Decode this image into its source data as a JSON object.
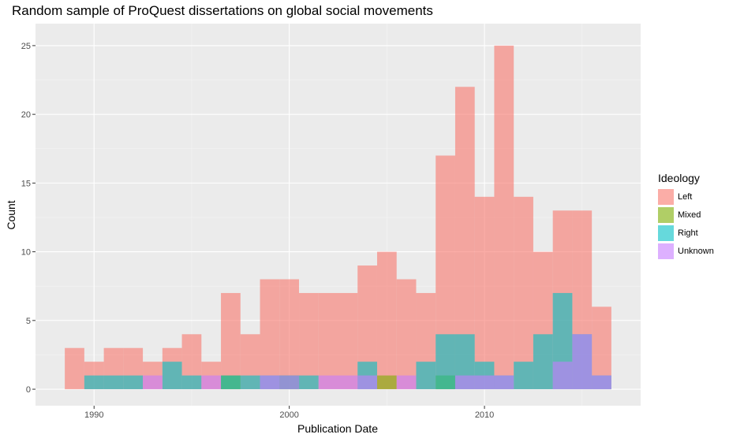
{
  "chart_data": {
    "type": "histogram",
    "title": "Random sample of ProQuest dissertations on global social movements",
    "xlabel": "Publication Date",
    "ylabel": "Count",
    "xlim": [
      1987,
      2018
    ],
    "ylim": [
      -1.2,
      26.6
    ],
    "x_ticks": [
      1990,
      2000,
      2010
    ],
    "y_ticks": [
      0,
      5,
      10,
      15,
      20,
      25
    ],
    "bin_start": 1988.5,
    "bin_width": 1,
    "legend": {
      "title": "Ideology",
      "placement": "right"
    },
    "series": [
      {
        "name": "Left",
        "color": "#F8766D",
        "values": [
          3,
          2,
          3,
          3,
          2,
          3,
          4,
          2,
          7,
          4,
          8,
          8,
          7,
          7,
          7,
          9,
          10,
          8,
          7,
          17,
          22,
          14,
          25,
          14,
          10,
          13,
          13,
          6
        ]
      },
      {
        "name": "Mixed",
        "color": "#7CAE00",
        "values": [
          0,
          0,
          0,
          0,
          0,
          0,
          0,
          0,
          1,
          0,
          0,
          1,
          0,
          0,
          0,
          0,
          1,
          0,
          0,
          1,
          0,
          0,
          0,
          0,
          0,
          0,
          0,
          0
        ]
      },
      {
        "name": "Right",
        "color": "#00BFC4",
        "values": [
          0,
          1,
          1,
          1,
          0,
          2,
          1,
          0,
          1,
          1,
          1,
          1,
          1,
          0,
          0,
          2,
          0,
          0,
          2,
          4,
          4,
          2,
          1,
          2,
          4,
          7,
          4,
          1
        ]
      },
      {
        "name": "Unknown",
        "color": "#C77CFF",
        "values": [
          0,
          0,
          0,
          0,
          1,
          0,
          0,
          1,
          0,
          0,
          1,
          1,
          0,
          1,
          1,
          1,
          0,
          1,
          0,
          0,
          1,
          1,
          1,
          0,
          0,
          2,
          4,
          1
        ]
      }
    ]
  }
}
